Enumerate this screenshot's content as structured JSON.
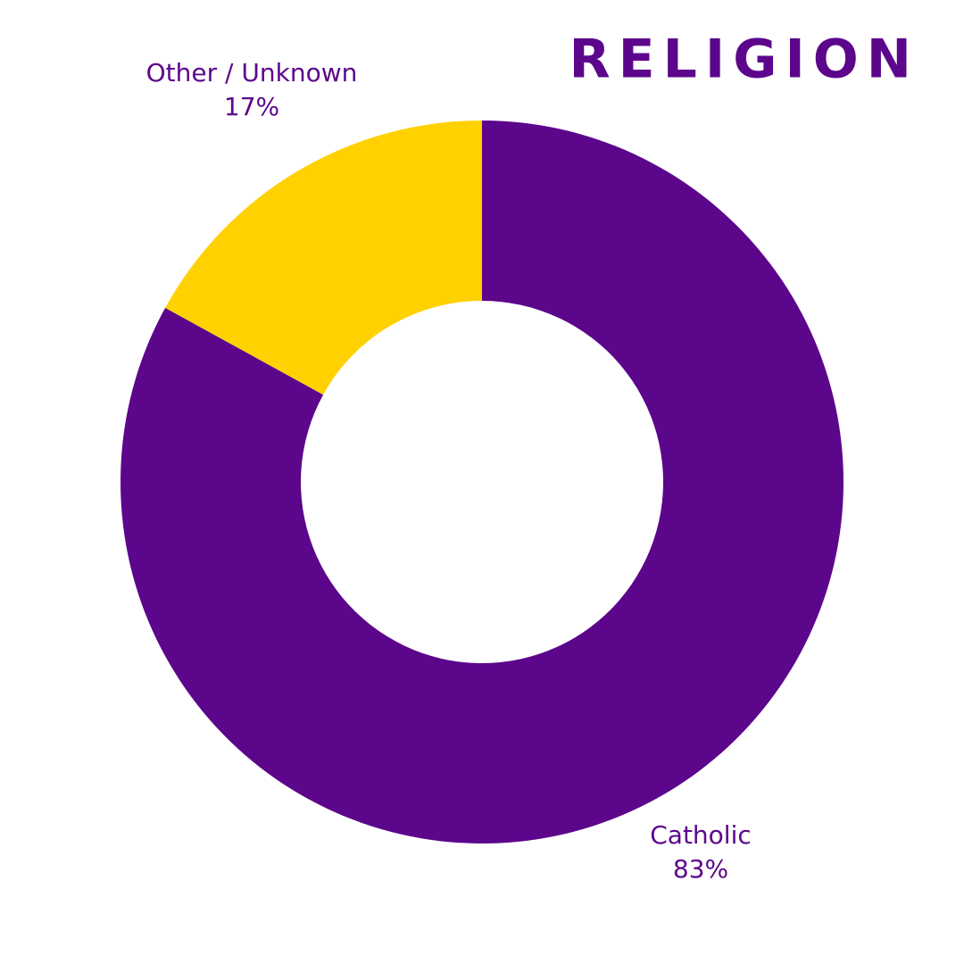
{
  "chart_data": {
    "type": "donut",
    "title": "RELIGION",
    "categories": [
      "Catholic",
      "Other / Unknown"
    ],
    "values": [
      83,
      17
    ],
    "value_labels": [
      "83%",
      "17%"
    ],
    "colors": [
      "#5c068c",
      "#ffd100"
    ]
  }
}
